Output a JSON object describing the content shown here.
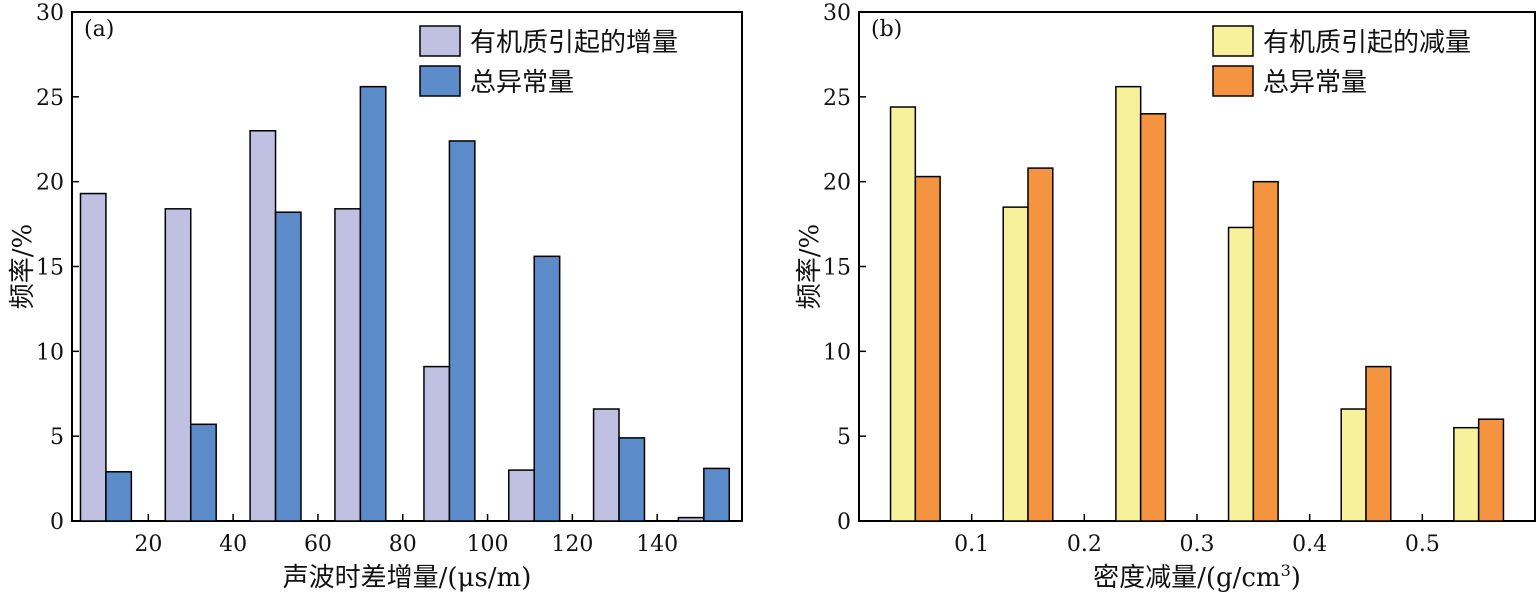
{
  "chart_data": [
    {
      "type": "bar",
      "panel_label": "(a)",
      "xlabel": "声波时差增量/(μs/m)",
      "ylabel": "频率/%",
      "ylim": [
        0,
        30
      ],
      "yticks": [
        0,
        5,
        10,
        15,
        20,
        25,
        30
      ],
      "xlim": [
        2,
        160
      ],
      "xticks": [
        20,
        40,
        60,
        80,
        100,
        120,
        140
      ],
      "grid": false,
      "legend_position": "top-right",
      "bar_width": 6,
      "series": [
        {
          "name": "有机质引起的增量",
          "color": "#bfc0e2",
          "x": [
            7,
            27,
            47,
            67,
            88,
            108,
            128,
            148
          ],
          "values": [
            19.3,
            18.4,
            23.0,
            18.4,
            9.1,
            3.0,
            6.6,
            0.2
          ]
        },
        {
          "name": "总异常量",
          "color": "#5b8bc9",
          "x": [
            13,
            33,
            53,
            73,
            94,
            114,
            134,
            154
          ],
          "values": [
            2.9,
            5.7,
            18.2,
            25.6,
            22.4,
            15.6,
            4.9,
            3.1
          ]
        }
      ]
    },
    {
      "type": "bar",
      "panel_label": "(b)",
      "xlabel": "密度减量/(g/cm",
      "xlabel_sup": "3",
      "xlabel_end": ")",
      "ylabel": "频率/%",
      "ylim": [
        0,
        30
      ],
      "yticks": [
        0,
        5,
        10,
        15,
        20,
        25,
        30
      ],
      "xlim": [
        0,
        0.6
      ],
      "xticks": [
        "0.1",
        "0.2",
        "0.3",
        "0.4",
        "0.5"
      ],
      "grid": false,
      "legend_position": "top-right",
      "bar_width": 0.022,
      "series": [
        {
          "name": "有机质引起的减量",
          "color": "#f8f19c",
          "x": [
            0.039,
            0.139,
            0.239,
            0.339,
            0.439,
            0.539
          ],
          "values": [
            24.4,
            18.5,
            25.6,
            17.3,
            6.6,
            5.5
          ]
        },
        {
          "name": "总异常量",
          "color": "#f49340",
          "x": [
            0.061,
            0.161,
            0.261,
            0.361,
            0.461,
            0.561
          ],
          "values": [
            20.3,
            20.8,
            24.0,
            20.0,
            9.1,
            6.0
          ]
        }
      ]
    }
  ]
}
